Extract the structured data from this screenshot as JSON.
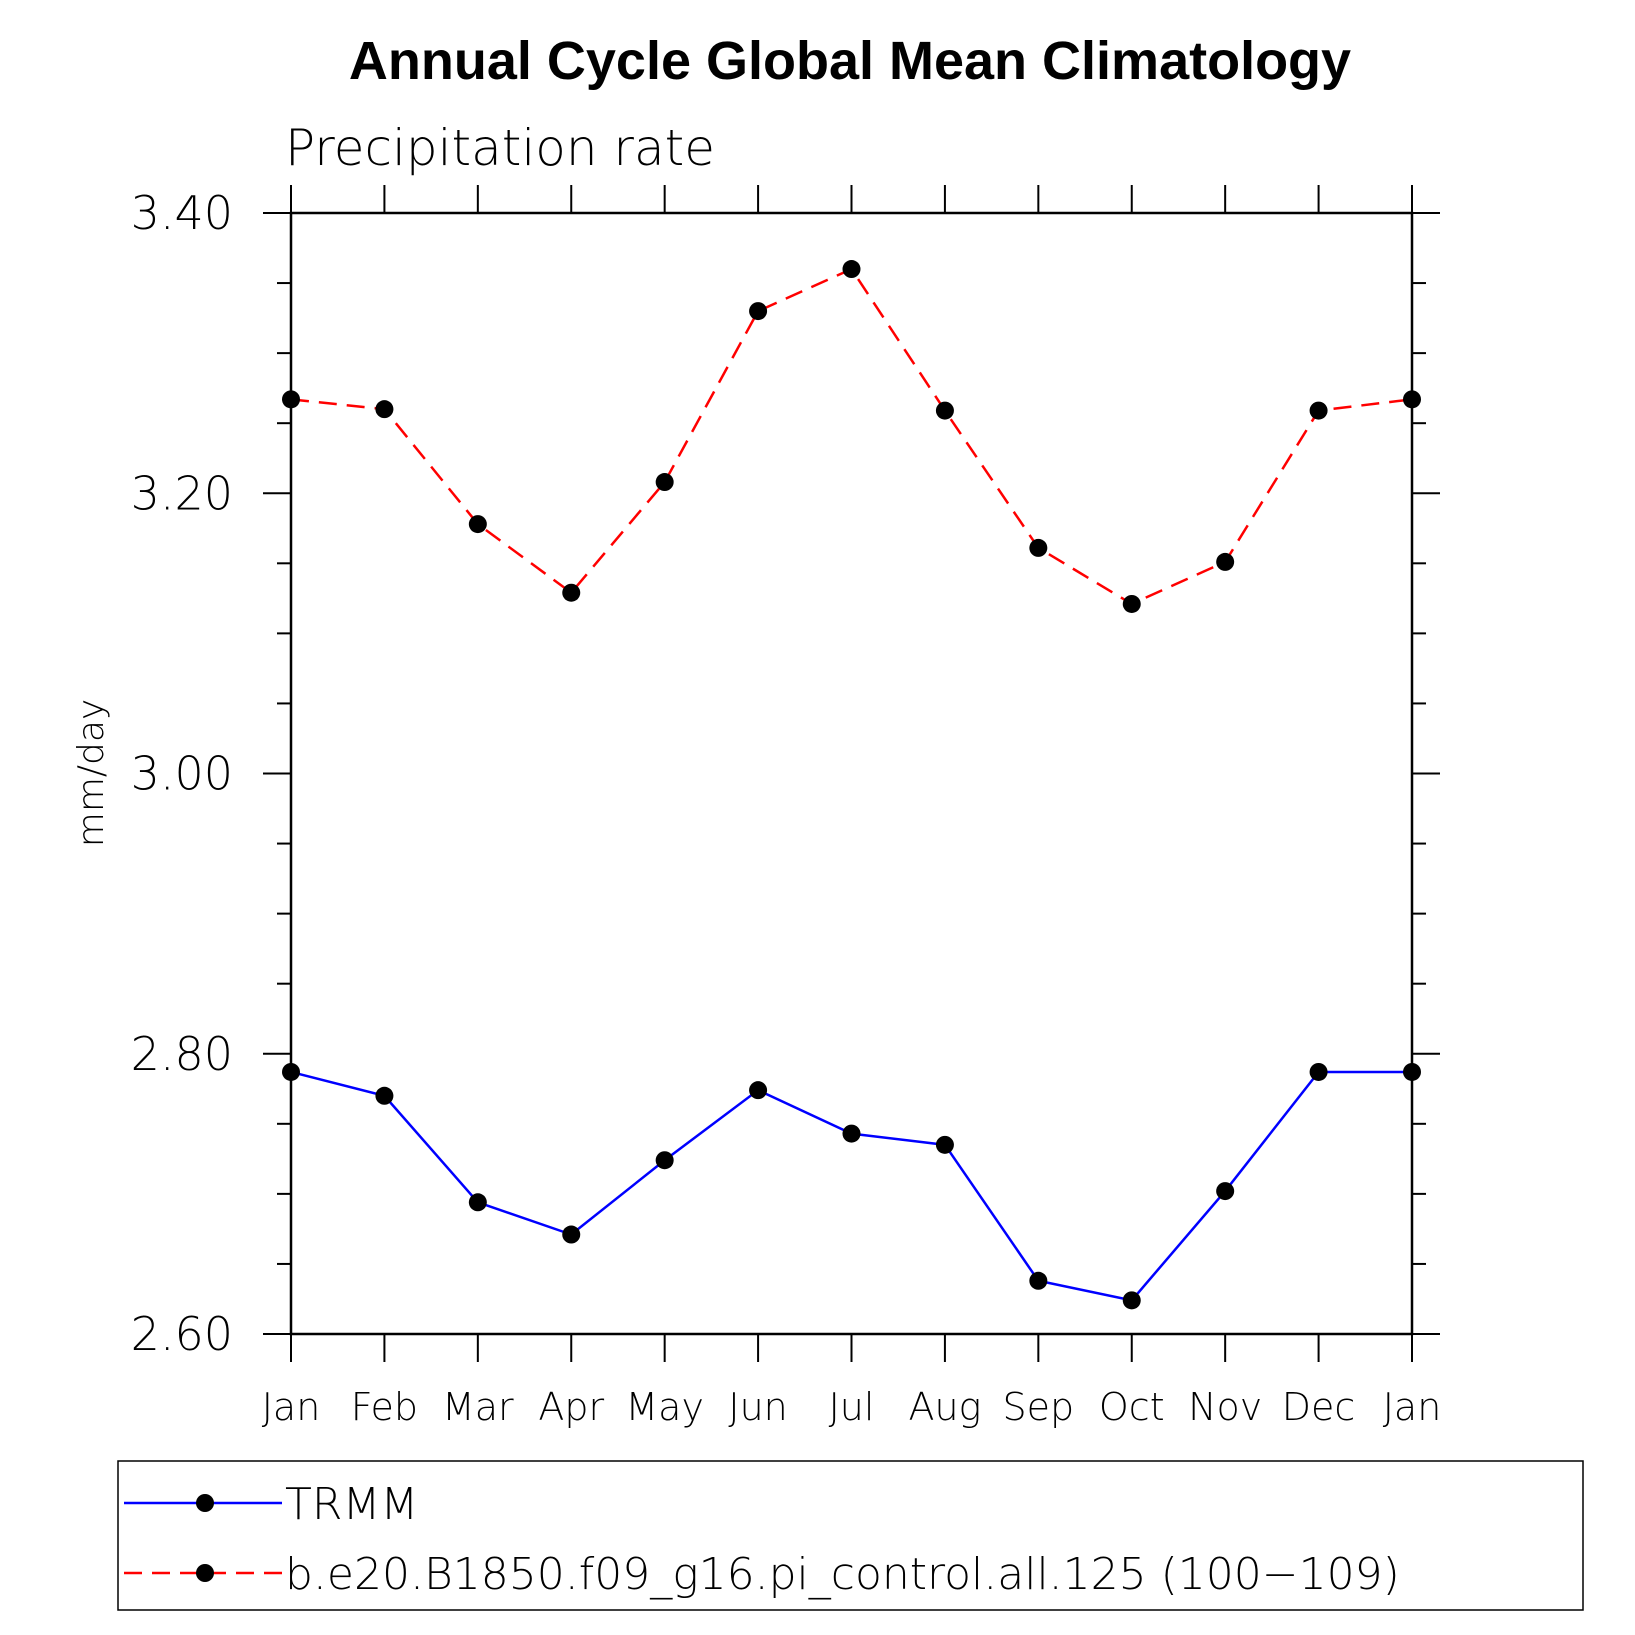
{
  "chart_data": {
    "type": "line",
    "title": "Annual Cycle Global Mean Climatology",
    "subtitle": "Precipitation rate",
    "xlabel": "",
    "ylabel": "mm/day",
    "categories": [
      "Jan",
      "Feb",
      "Mar",
      "Apr",
      "May",
      "Jun",
      "Jul",
      "Aug",
      "Sep",
      "Oct",
      "Nov",
      "Dec",
      "Jan"
    ],
    "ylim": [
      2.6,
      3.4
    ],
    "yticks": [
      "2.60",
      "2.80",
      "3.00",
      "3.20",
      "3.40"
    ],
    "grid": false,
    "legend_position": "bottom",
    "series": [
      {
        "name": "TRMM",
        "color": "#0000ff",
        "style": "solid",
        "values": [
          2.787,
          2.77,
          2.694,
          2.671,
          2.724,
          2.774,
          2.743,
          2.735,
          2.638,
          2.624,
          2.702,
          2.787,
          2.787
        ]
      },
      {
        "name": "b.e20.B1850.f09_g16.pi_control.all.125 (100−109)",
        "color": "#ff0000",
        "style": "dashed",
        "values": [
          3.267,
          3.26,
          3.178,
          3.129,
          3.208,
          3.33,
          3.36,
          3.259,
          3.161,
          3.121,
          3.151,
          3.259,
          3.267
        ]
      }
    ]
  }
}
